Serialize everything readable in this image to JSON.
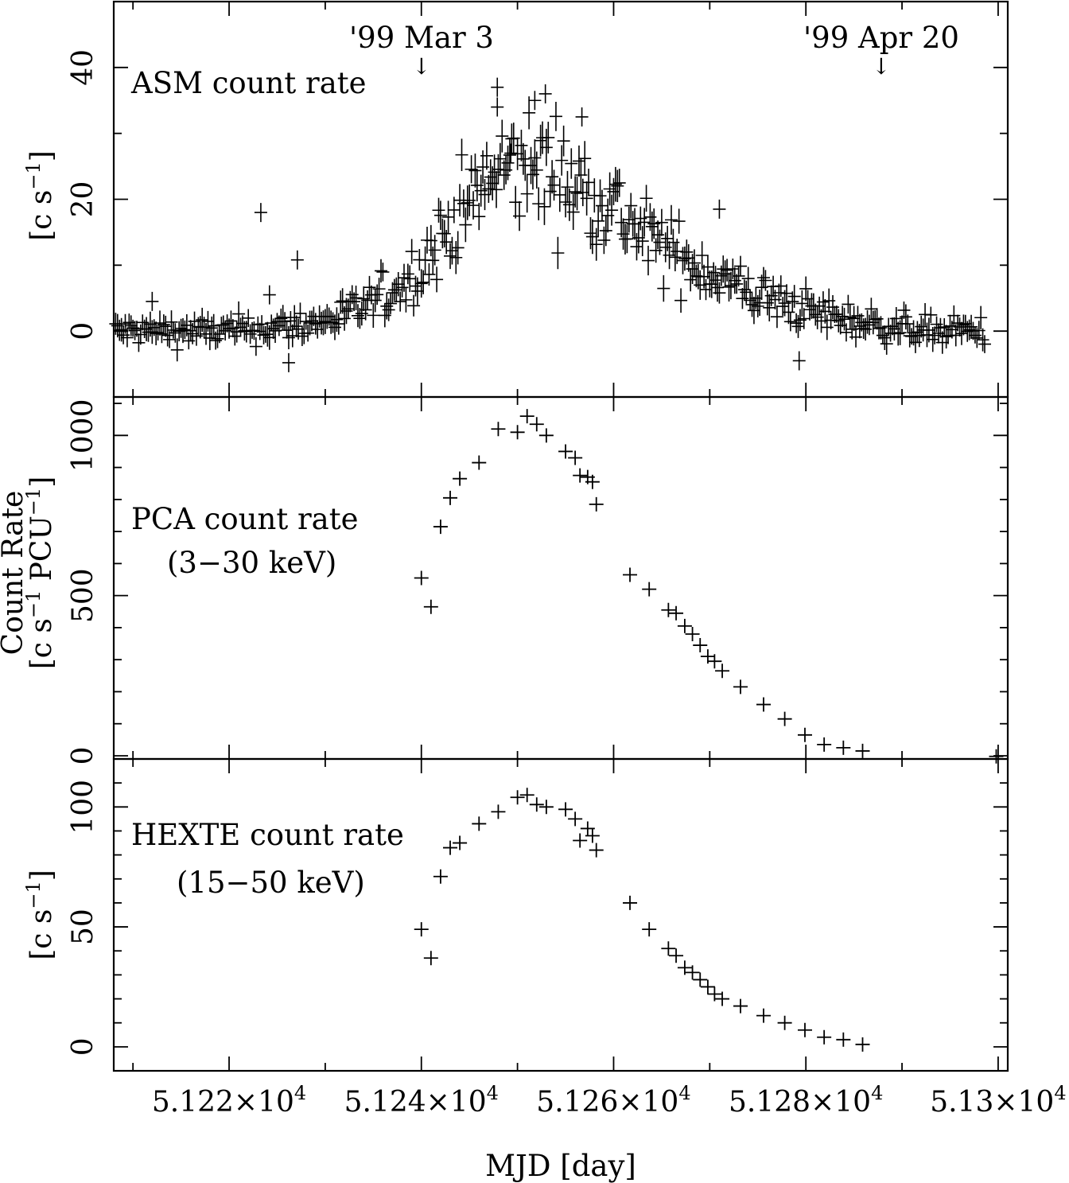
{
  "x_axis": {
    "label": "MJD [day]",
    "range": [
      51208,
      51301
    ],
    "tick_labels": [
      {
        "value": 51220,
        "mantissa": "5.122",
        "times": "×",
        "base": "10",
        "exp": "4"
      },
      {
        "value": 51240,
        "mantissa": "5.124",
        "times": "×",
        "base": "10",
        "exp": "4"
      },
      {
        "value": 51260,
        "mantissa": "5.126",
        "times": "×",
        "base": "10",
        "exp": "4"
      },
      {
        "value": 51280,
        "mantissa": "5.128",
        "times": "×",
        "base": "10",
        "exp": "4"
      },
      {
        "value": 51300,
        "mantissa": "5.13",
        "times": "×",
        "base": "10",
        "exp": "4"
      }
    ]
  },
  "annotations": [
    {
      "text": "'99 Mar 3",
      "x_value": 51240,
      "arrow": "↓"
    },
    {
      "text": "'99 Apr 20",
      "x_value": 51288,
      "arrow": "↓"
    }
  ],
  "panels": {
    "asm": {
      "title": "ASM count rate",
      "ylabel_main": "[c s",
      "ylabel_exp": "−1",
      "ylabel_close": "]",
      "ylim": [
        -10,
        50
      ],
      "ticks": [
        0,
        20,
        40
      ]
    },
    "pca": {
      "title_line1": "PCA count rate",
      "title_line2": "(3−30 keV)",
      "ylabel_line1": "Count Rate",
      "ylabel_line2_a": "[c s",
      "ylabel_line2_exp1": "−1",
      "ylabel_line2_b": " PCU",
      "ylabel_line2_exp2": "−1",
      "ylabel_line2_c": "]",
      "ylim": [
        -10,
        1120
      ],
      "ticks": [
        0,
        500,
        1000
      ]
    },
    "hexte": {
      "title_line1": "HEXTE count rate",
      "title_line2": "(15−50 keV)",
      "ylabel_main": "[c s",
      "ylabel_exp": "−1",
      "ylabel_close": "]",
      "ylim": [
        -10,
        120
      ],
      "ticks": [
        0,
        50,
        100
      ]
    }
  },
  "chart_data": [
    {
      "type": "scatter",
      "title": "ASM count rate",
      "xlabel": "MJD [day]",
      "ylabel": "[c s^-1]",
      "xlim": [
        51208,
        51301
      ],
      "ylim": [
        -10,
        50
      ],
      "profile": {
        "description": "dense daily ASM dwells with error crosses (~1 c/s errors)",
        "x": [
          51209,
          51215,
          51220,
          51225,
          51230,
          51234,
          51238,
          51240,
          51242,
          51244,
          51246,
          51248,
          51250,
          51252,
          51254,
          51256,
          51258,
          51260,
          51262,
          51264,
          51266,
          51268,
          51270,
          51274,
          51278,
          51282,
          51286,
          51290,
          51294,
          51298
        ],
        "y": [
          0,
          0,
          0,
          0.5,
          1.5,
          3.5,
          7,
          10,
          14,
          18,
          21,
          24,
          25,
          25,
          24,
          22,
          21,
          19,
          16,
          13.5,
          12,
          10.5,
          9,
          6,
          4,
          2.5,
          1.2,
          0.5,
          0,
          0
        ]
      },
      "outliers": [
        {
          "x": 51223.3,
          "y": 18
        },
        {
          "x": 51227.1,
          "y": 10.8
        },
        {
          "x": 51224.2,
          "y": 5.5
        },
        {
          "x": 51226.2,
          "y": -4.8
        },
        {
          "x": 51247.9,
          "y": 37
        },
        {
          "x": 51247.9,
          "y": 34
        },
        {
          "x": 51249.3,
          "y": 27
        },
        {
          "x": 51251.8,
          "y": 35
        },
        {
          "x": 51252.9,
          "y": 36
        },
        {
          "x": 51256.7,
          "y": 32.5
        },
        {
          "x": 51271.0,
          "y": 18.5
        },
        {
          "x": 51279.3,
          "y": -4.5
        },
        {
          "x": 51212.0,
          "y": 4.5
        }
      ]
    },
    {
      "type": "scatter",
      "title": "PCA count rate (3−30 keV)",
      "xlabel": "MJD [day]",
      "ylabel": "Count Rate [c s^-1 PCU^-1]",
      "xlim": [
        51208,
        51301
      ],
      "ylim": [
        -10,
        1120
      ],
      "x": [
        51240.0,
        51241.0,
        51242.0,
        51243.0,
        51244.0,
        51246.0,
        51248.0,
        51250.0,
        51251.0,
        51252.0,
        51253.0,
        51255.0,
        51256.0,
        51256.5,
        51257.3,
        51257.8,
        51258.2,
        51261.7,
        51263.7,
        51265.7,
        51266.5,
        51267.4,
        51268.2,
        51269.0,
        51269.8,
        51270.5,
        51271.3,
        51273.2,
        51275.6,
        51277.8,
        51279.9,
        51281.9,
        51283.9,
        51285.9,
        51299.8
      ],
      "y": [
        555,
        465,
        715,
        805,
        865,
        915,
        1020,
        1010,
        1060,
        1035,
        1000,
        950,
        930,
        875,
        870,
        855,
        785,
        565,
        520,
        455,
        445,
        405,
        380,
        345,
        310,
        295,
        265,
        215,
        160,
        115,
        65,
        35,
        25,
        15,
        -2
      ]
    },
    {
      "type": "scatter",
      "title": "HEXTE count rate (15−50 keV)",
      "xlabel": "MJD [day]",
      "ylabel": "[c s^-1]",
      "xlim": [
        51208,
        51301
      ],
      "ylim": [
        -10,
        120
      ],
      "x": [
        51240.0,
        51241.0,
        51242.0,
        51243.0,
        51244.0,
        51246.0,
        51248.0,
        51250.0,
        51251.0,
        51252.0,
        51253.0,
        51255.0,
        51256.0,
        51256.5,
        51257.3,
        51257.8,
        51258.2,
        51261.7,
        51263.7,
        51265.7,
        51266.5,
        51267.4,
        51268.2,
        51269.0,
        51269.8,
        51270.5,
        51271.3,
        51273.2,
        51275.6,
        51277.8,
        51279.9,
        51281.9,
        51283.9,
        51285.9
      ],
      "y": [
        49,
        37,
        71,
        83,
        85,
        93,
        98,
        104,
        105,
        101,
        100,
        99,
        95,
        86,
        91,
        88,
        82,
        60,
        49,
        41,
        38,
        33,
        31,
        28,
        25,
        22,
        20,
        17,
        13,
        10,
        7,
        4,
        3,
        1
      ]
    }
  ]
}
